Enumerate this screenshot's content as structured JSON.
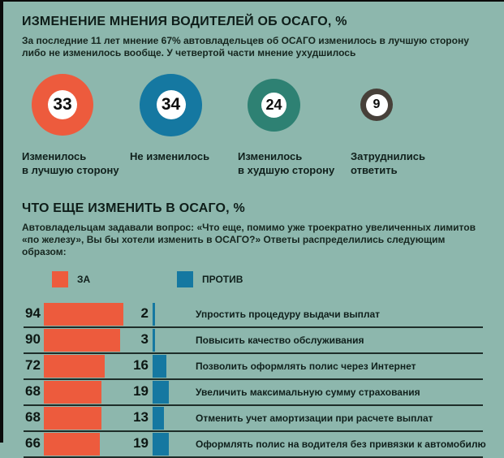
{
  "colors": {
    "background": "#8db7ad",
    "za_orange": "#ed5b3d",
    "protiv_blue": "#1578a1",
    "worse_teal": "#2e8173",
    "undecided_gray": "#474039",
    "text": "#10201c",
    "line": "#1e2d29",
    "bubble_inner": "#ffffff"
  },
  "section_opinion": {
    "title": "ИЗМЕНЕНИЕ МНЕНИЯ ВОДИТЕЛЕЙ ОБ ОСАГО, %",
    "description": "За последние 11 лет мнение 67% автовладельцев об ОСАГО изменилось в лучшую сторону либо не изменилось вообще. У четвертой части мнение ухудшилось",
    "bubbles": [
      {
        "value": 33,
        "label": "Изменилось\nв лучшую сторону",
        "color": "#ed5b3d"
      },
      {
        "value": 34,
        "label": "Не изменилось",
        "color": "#1578a1"
      },
      {
        "value": 24,
        "label": "Изменилось\nв худшую сторону",
        "color": "#2e8173"
      },
      {
        "value": 9,
        "label": "Затруднились\nответить",
        "color": "#474039"
      }
    ]
  },
  "section_changes": {
    "title": "ЧТО ЕЩЕ ИЗМЕНИТЬ В ОСАГО, %",
    "description": "Автовладельцам задавали вопрос: «Что еще, помимо уже троекратно увеличенных лимитов «по железу», Вы бы хотели изменить в ОСАГО?» Ответы распределились следующим образом:",
    "legend": [
      {
        "label": "ЗА",
        "color": "#ed5b3d"
      },
      {
        "label": "ПРОТИВ",
        "color": "#1578a1"
      }
    ],
    "rows": [
      {
        "za": 94,
        "protiv": 2,
        "label": "Упростить процедуру выдачи выплат"
      },
      {
        "za": 90,
        "protiv": 3,
        "label": "Повысить качество обслуживания"
      },
      {
        "za": 72,
        "protiv": 16,
        "label": "Позволить оформлять полис через Интернет"
      },
      {
        "za": 68,
        "protiv": 19,
        "label": "Увеличить максимальную сумму страхования"
      },
      {
        "za": 68,
        "protiv": 13,
        "label": "Отменить учет амортизации при расчете выплат"
      },
      {
        "za": 66,
        "protiv": 19,
        "label": "Оформлять полис на водителя без привязки к автомобилю"
      }
    ]
  },
  "chart_data": [
    {
      "type": "pie",
      "title": "ИЗМЕНЕНИЕ МНЕНИЯ ВОДИТЕЛЕЙ ОБ ОСАГО, %",
      "note": "rendered as value-sized circles, sum = 100%",
      "categories": [
        "Изменилось в лучшую сторону",
        "Не изменилось",
        "Изменилось в худшую сторону",
        "Затруднились ответить"
      ],
      "values": [
        33,
        34,
        24,
        9
      ],
      "colors": [
        "#ed5b3d",
        "#1578a1",
        "#2e8173",
        "#474039"
      ]
    },
    {
      "type": "bar",
      "title": "ЧТО ЕЩЕ ИЗМЕНИТЬ В ОСАГО, %",
      "orientation": "horizontal",
      "xlim": [
        0,
        100
      ],
      "grid": false,
      "legend_position": "top",
      "categories": [
        "Упростить процедуру выдачи выплат",
        "Повысить качество обслуживания",
        "Позволить оформлять полис через Интернет",
        "Увеличить максимальную сумму страхования",
        "Отменить учет амортизации при расчете выплат",
        "Оформлять полис на водителя без привязки к автомобилю"
      ],
      "series": [
        {
          "name": "ЗА",
          "values": [
            94,
            90,
            72,
            68,
            68,
            66
          ],
          "color": "#ed5b3d"
        },
        {
          "name": "ПРОТИВ",
          "values": [
            2,
            3,
            16,
            19,
            13,
            19
          ],
          "color": "#1578a1"
        }
      ]
    }
  ]
}
